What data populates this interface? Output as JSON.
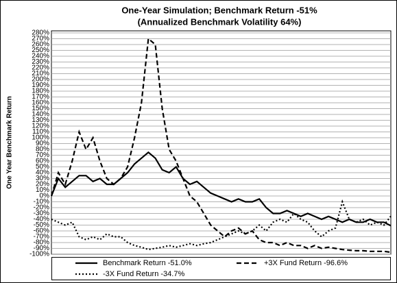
{
  "chart_data": {
    "type": "line",
    "title": "One-Year Simulation; Benchmark Return -51%",
    "subtitle": "(Annualized Benchmark Volatility 64%)",
    "y_label": "One Year Benchmark Return",
    "ylim": [
      -100,
      280
    ],
    "yticks": [
      {
        "value": -100,
        "label": "-100%"
      },
      {
        "value": -90,
        "label": "-90%"
      },
      {
        "value": -80,
        "label": "-80%"
      },
      {
        "value": -70,
        "label": "-70%"
      },
      {
        "value": -60,
        "label": "-60%"
      },
      {
        "value": -50,
        "label": "-50%"
      },
      {
        "value": -40,
        "label": "-40%"
      },
      {
        "value": -30,
        "label": "-30%"
      },
      {
        "value": -20,
        "label": "-20%"
      },
      {
        "value": -10,
        "label": "-10%"
      },
      {
        "value": 0,
        "label": "0%"
      },
      {
        "value": 10,
        "label": "10%"
      },
      {
        "value": 20,
        "label": "20%"
      },
      {
        "value": 30,
        "label": "30%"
      },
      {
        "value": 40,
        "label": "40%"
      },
      {
        "value": 50,
        "label": "50%"
      },
      {
        "value": 60,
        "label": "60%"
      },
      {
        "value": 70,
        "label": "70%"
      },
      {
        "value": 80,
        "label": "80%"
      },
      {
        "value": 90,
        "label": "90%"
      },
      {
        "value": 100,
        "label": "100%"
      },
      {
        "value": 110,
        "label": "110%"
      },
      {
        "value": 120,
        "label": "120%"
      },
      {
        "value": 130,
        "label": "130%"
      },
      {
        "value": 140,
        "label": "140%"
      },
      {
        "value": 150,
        "label": "150%"
      },
      {
        "value": 160,
        "label": "160%"
      },
      {
        "value": 170,
        "label": "170%"
      },
      {
        "value": 180,
        "label": "180%"
      },
      {
        "value": 190,
        "label": "190%"
      },
      {
        "value": 200,
        "label": "200%"
      },
      {
        "value": 210,
        "label": "210%"
      },
      {
        "value": 220,
        "label": "220%"
      },
      {
        "value": 230,
        "label": "230%"
      },
      {
        "value": 240,
        "label": "240%"
      },
      {
        "value": 250,
        "label": "250%"
      },
      {
        "value": 260,
        "label": "260%"
      },
      {
        "value": 270,
        "label": "270%"
      },
      {
        "value": 280,
        "label": "280%"
      }
    ],
    "grid": true,
    "series": [
      {
        "name": "Benchmark Return -51.0%",
        "color": "#000000",
        "style": "solid",
        "values": [
          0,
          30,
          15,
          25,
          35,
          35,
          25,
          30,
          20,
          20,
          30,
          40,
          55,
          65,
          75,
          65,
          45,
          40,
          50,
          30,
          20,
          25,
          15,
          5,
          0,
          -5,
          -10,
          -5,
          -10,
          -10,
          -5,
          -20,
          -30,
          -30,
          -25,
          -30,
          -35,
          -30,
          -35,
          -40,
          -35,
          -40,
          -45,
          -40,
          -45,
          -45,
          -40,
          -45,
          -45,
          -51
        ]
      },
      {
        "name": "+3X Fund Return -96.6%",
        "color": "#000000",
        "style": "dashed",
        "values": [
          0,
          40,
          20,
          60,
          110,
          80,
          100,
          60,
          30,
          20,
          30,
          50,
          100,
          160,
          270,
          260,
          150,
          80,
          60,
          30,
          0,
          -10,
          -30,
          -50,
          -60,
          -70,
          -60,
          -55,
          -65,
          -60,
          -75,
          -80,
          -80,
          -85,
          -80,
          -85,
          -85,
          -90,
          -85,
          -90,
          -88,
          -90,
          -92,
          -93,
          -94,
          -94,
          -95,
          -95,
          -95,
          -96.6
        ]
      },
      {
        "name": "-3X Fund Return -34.7%",
        "color": "#000000",
        "style": "dotted",
        "values": [
          -40,
          -45,
          -50,
          -45,
          -70,
          -75,
          -70,
          -75,
          -65,
          -70,
          -70,
          -80,
          -85,
          -88,
          -92,
          -90,
          -88,
          -85,
          -88,
          -85,
          -82,
          -85,
          -82,
          -80,
          -75,
          -70,
          -65,
          -60,
          -65,
          -60,
          -50,
          -60,
          -45,
          -40,
          -45,
          -30,
          -40,
          -45,
          -60,
          -70,
          -60,
          -55,
          -10,
          -40,
          -45,
          -40,
          -50,
          -45,
          -50,
          -34.7
        ]
      }
    ]
  }
}
